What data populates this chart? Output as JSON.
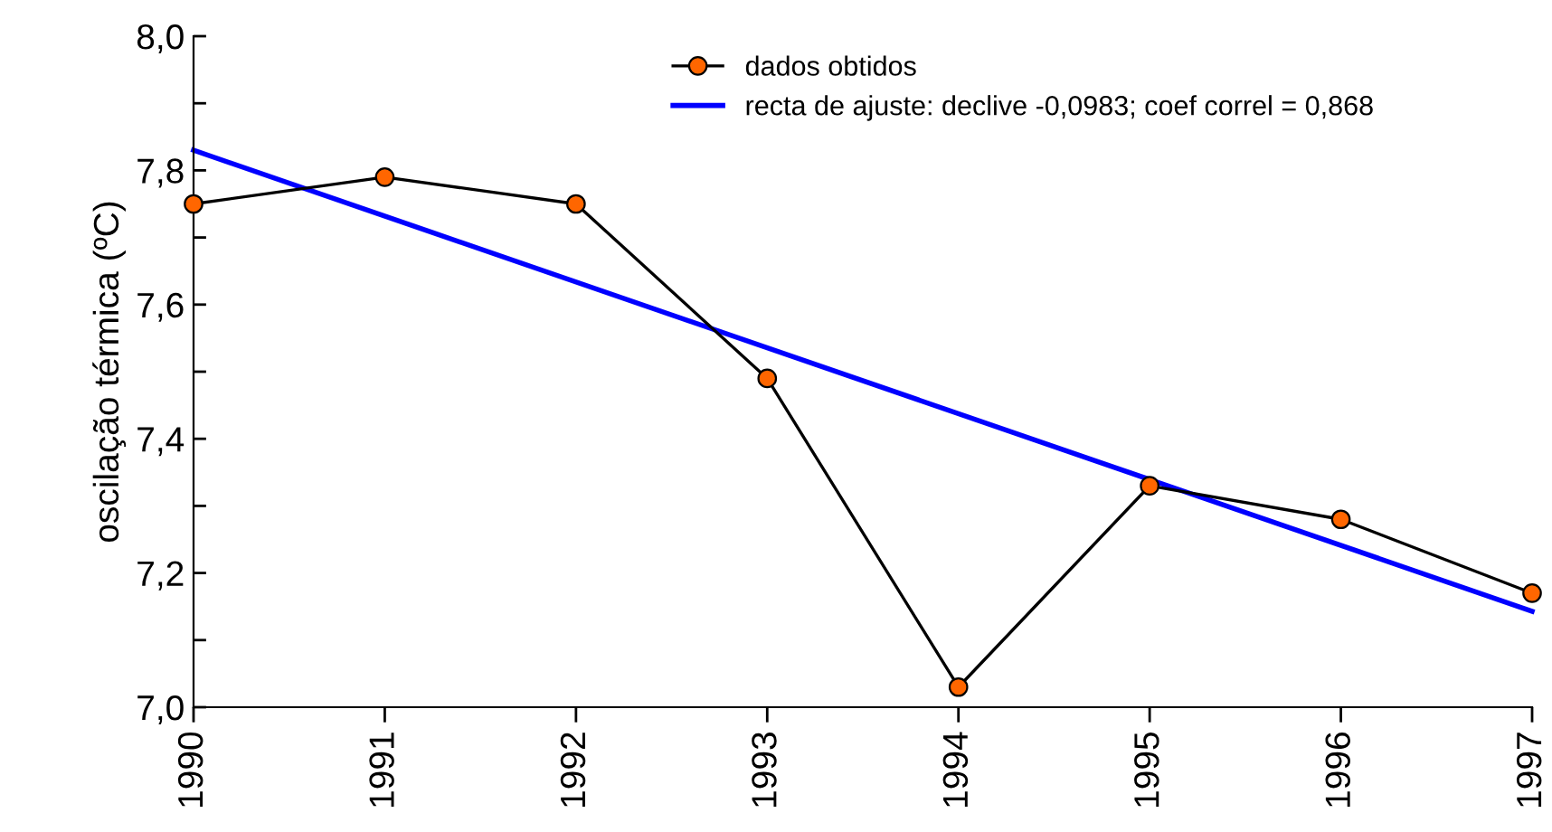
{
  "chart_data": {
    "type": "line",
    "ylabel": "oscilação térmica (ºC)",
    "x": [
      1990,
      1991,
      1992,
      1993,
      1994,
      1995,
      1996,
      1997
    ],
    "xlim": [
      1990,
      1997
    ],
    "xticks": [
      1990,
      1991,
      1992,
      1993,
      1994,
      1995,
      1996,
      1997
    ],
    "ylim": [
      7.0,
      8.0
    ],
    "yticks": [
      {
        "value": 7.0,
        "label": "7,0"
      },
      {
        "value": 7.1,
        "label": null
      },
      {
        "value": 7.2,
        "label": "7,2"
      },
      {
        "value": 7.3,
        "label": null
      },
      {
        "value": 7.4,
        "label": "7,4"
      },
      {
        "value": 7.5,
        "label": null
      },
      {
        "value": 7.6,
        "label": "7,6"
      },
      {
        "value": 7.7,
        "label": null
      },
      {
        "value": 7.8,
        "label": "7,8"
      },
      {
        "value": 7.9,
        "label": null
      },
      {
        "value": 8.0,
        "label": "8,0"
      }
    ],
    "series": [
      {
        "name": "dados obtidos",
        "color": "#000000",
        "colors": [
          "#ff6600",
          "#ff6600",
          "#ff6600",
          "#ff6600",
          "#ff6600",
          "#ff6600",
          "#ff6600",
          "#ff6600"
        ],
        "marker": "circle",
        "values": [
          7.75,
          7.79,
          7.75,
          7.49,
          7.03,
          7.33,
          7.28,
          7.17
        ]
      },
      {
        "name": "recta de ajuste: declive -0,0983; coef correl = 0,868",
        "color": "#0000ff",
        "marker": "none",
        "x": [
          1990,
          1997
        ],
        "values": [
          7.83,
          7.143
        ]
      }
    ],
    "grid": false,
    "legend": "top"
  }
}
